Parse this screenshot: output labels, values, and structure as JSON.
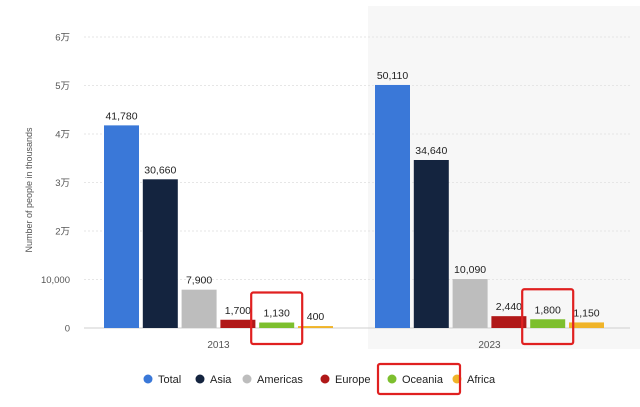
{
  "chart_data": {
    "type": "bar",
    "categories": [
      "2013",
      "2023"
    ],
    "ylabel": "Number of people in thousands",
    "ylim": [
      0,
      60000
    ],
    "y_tick_values": [
      0,
      10000,
      20000,
      30000,
      40000,
      50000,
      60000
    ],
    "y_tick_labels": [
      "0",
      "10,000",
      "2万",
      "3万",
      "4万",
      "5万",
      "6万"
    ],
    "grid": true,
    "legend_position": "bottom",
    "series": [
      {
        "name": "Total",
        "color": "#3a78d8",
        "values": [
          41780,
          50110
        ],
        "labels": [
          "41,780",
          "50,110"
        ]
      },
      {
        "name": "Asia",
        "color": "#14243f",
        "values": [
          30660,
          34640
        ],
        "labels": [
          "30,660",
          "34,640"
        ]
      },
      {
        "name": "Americas",
        "color": "#bdbdbd",
        "values": [
          7900,
          10090
        ],
        "labels": [
          "7,900",
          "10,090"
        ]
      },
      {
        "name": "Europe",
        "color": "#b01818",
        "values": [
          1700,
          2440
        ],
        "labels": [
          "1,700",
          "2,440"
        ]
      },
      {
        "name": "Oceania",
        "color": "#7dbf2e",
        "values": [
          1130,
          1800
        ],
        "labels": [
          "1,130",
          "1,800"
        ]
      },
      {
        "name": "Africa",
        "color": "#f0b429",
        "values": [
          400,
          1150
        ],
        "labels": [
          "400",
          "1,150"
        ]
      }
    ],
    "highlight_color": "#e02020"
  }
}
